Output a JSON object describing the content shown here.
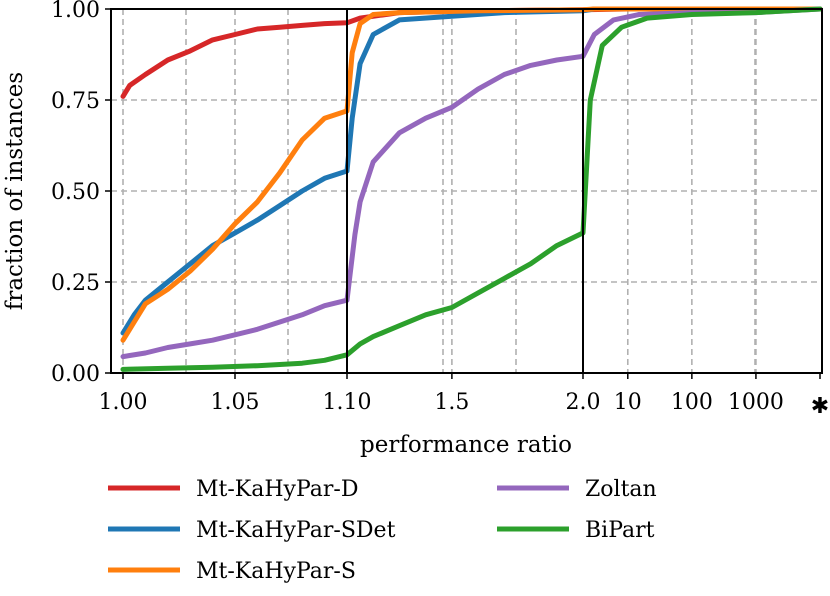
{
  "chart_data": {
    "type": "line",
    "title": "",
    "xlabel": "performance ratio",
    "ylabel": "fraction of instances",
    "ylim": [
      0,
      1
    ],
    "yticks": [
      "0.00",
      "0.25",
      "0.50",
      "0.75",
      "1.00"
    ],
    "xscale": "piecewise: [1.00,1.10] linear, [1.10,2.0] linear, [2.0,10000] log, then infeasible marker",
    "xticks": [
      "1.00",
      "1.05",
      "1.10",
      "1.5",
      "2.0",
      "10",
      "100",
      "1000",
      "✱"
    ],
    "grid": true,
    "legend_position": "bottom",
    "series": [
      {
        "name": "Mt-KaHyPar-D",
        "color": "#d62728",
        "points": [
          [
            1.0,
            0.76
          ],
          [
            1.003,
            0.79
          ],
          [
            1.01,
            0.82
          ],
          [
            1.02,
            0.86
          ],
          [
            1.03,
            0.885
          ],
          [
            1.04,
            0.915
          ],
          [
            1.05,
            0.93
          ],
          [
            1.06,
            0.945
          ],
          [
            1.07,
            0.95
          ],
          [
            1.08,
            0.955
          ],
          [
            1.09,
            0.96
          ],
          [
            1.1,
            0.962
          ],
          [
            1.15,
            0.975
          ],
          [
            1.3,
            0.99
          ],
          [
            1.6,
            0.995
          ],
          [
            2.0,
            0.998
          ],
          [
            10,
            1.0
          ],
          [
            10000,
            1.0
          ]
        ]
      },
      {
        "name": "Mt-KaHyPar-SDet",
        "color": "#1f77b4",
        "points": [
          [
            1.0,
            0.11
          ],
          [
            1.005,
            0.16
          ],
          [
            1.01,
            0.2
          ],
          [
            1.02,
            0.25
          ],
          [
            1.03,
            0.3
          ],
          [
            1.04,
            0.35
          ],
          [
            1.05,
            0.385
          ],
          [
            1.06,
            0.42
          ],
          [
            1.07,
            0.46
          ],
          [
            1.08,
            0.5
          ],
          [
            1.09,
            0.535
          ],
          [
            1.1,
            0.555
          ],
          [
            1.12,
            0.7
          ],
          [
            1.15,
            0.85
          ],
          [
            1.2,
            0.93
          ],
          [
            1.3,
            0.97
          ],
          [
            1.5,
            0.98
          ],
          [
            1.7,
            0.99
          ],
          [
            2.0,
            0.995
          ],
          [
            3,
            1.0
          ],
          [
            10000,
            1.0
          ]
        ]
      },
      {
        "name": "Mt-KaHyPar-S",
        "color": "#ff7f0e",
        "points": [
          [
            1.0,
            0.09
          ],
          [
            1.005,
            0.14
          ],
          [
            1.01,
            0.19
          ],
          [
            1.02,
            0.23
          ],
          [
            1.03,
            0.28
          ],
          [
            1.04,
            0.34
          ],
          [
            1.05,
            0.41
          ],
          [
            1.06,
            0.47
          ],
          [
            1.07,
            0.55
          ],
          [
            1.08,
            0.64
          ],
          [
            1.09,
            0.7
          ],
          [
            1.1,
            0.72
          ],
          [
            1.12,
            0.88
          ],
          [
            1.15,
            0.96
          ],
          [
            1.2,
            0.985
          ],
          [
            1.3,
            0.99
          ],
          [
            1.6,
            0.995
          ],
          [
            2.0,
            0.998
          ],
          [
            3,
            1.0
          ],
          [
            10000,
            1.0
          ]
        ]
      },
      {
        "name": "Zoltan",
        "color": "#9467bd",
        "points": [
          [
            1.0,
            0.045
          ],
          [
            1.01,
            0.055
          ],
          [
            1.02,
            0.07
          ],
          [
            1.03,
            0.08
          ],
          [
            1.04,
            0.09
          ],
          [
            1.05,
            0.105
          ],
          [
            1.06,
            0.12
          ],
          [
            1.07,
            0.14
          ],
          [
            1.08,
            0.16
          ],
          [
            1.09,
            0.185
          ],
          [
            1.1,
            0.2
          ],
          [
            1.11,
            0.26
          ],
          [
            1.13,
            0.38
          ],
          [
            1.15,
            0.47
          ],
          [
            1.2,
            0.58
          ],
          [
            1.3,
            0.66
          ],
          [
            1.4,
            0.7
          ],
          [
            1.5,
            0.73
          ],
          [
            1.6,
            0.78
          ],
          [
            1.7,
            0.82
          ],
          [
            1.8,
            0.845
          ],
          [
            1.9,
            0.86
          ],
          [
            2.0,
            0.87
          ],
          [
            3,
            0.93
          ],
          [
            6,
            0.97
          ],
          [
            15,
            0.985
          ],
          [
            100,
            0.99
          ],
          [
            1000,
            0.99
          ],
          [
            10000,
            1.0
          ]
        ]
      },
      {
        "name": "BiPart",
        "color": "#2ca02c",
        "points": [
          [
            1.0,
            0.01
          ],
          [
            1.02,
            0.013
          ],
          [
            1.04,
            0.016
          ],
          [
            1.06,
            0.02
          ],
          [
            1.08,
            0.027
          ],
          [
            1.09,
            0.035
          ],
          [
            1.1,
            0.05
          ],
          [
            1.15,
            0.08
          ],
          [
            1.2,
            0.1
          ],
          [
            1.3,
            0.13
          ],
          [
            1.4,
            0.16
          ],
          [
            1.5,
            0.18
          ],
          [
            1.6,
            0.22
          ],
          [
            1.7,
            0.26
          ],
          [
            1.8,
            0.3
          ],
          [
            1.9,
            0.35
          ],
          [
            2.0,
            0.385
          ],
          [
            2.6,
            0.75
          ],
          [
            4,
            0.9
          ],
          [
            8,
            0.95
          ],
          [
            20,
            0.975
          ],
          [
            100,
            0.985
          ],
          [
            1000,
            0.99
          ],
          [
            10000,
            1.0
          ]
        ]
      }
    ]
  }
}
